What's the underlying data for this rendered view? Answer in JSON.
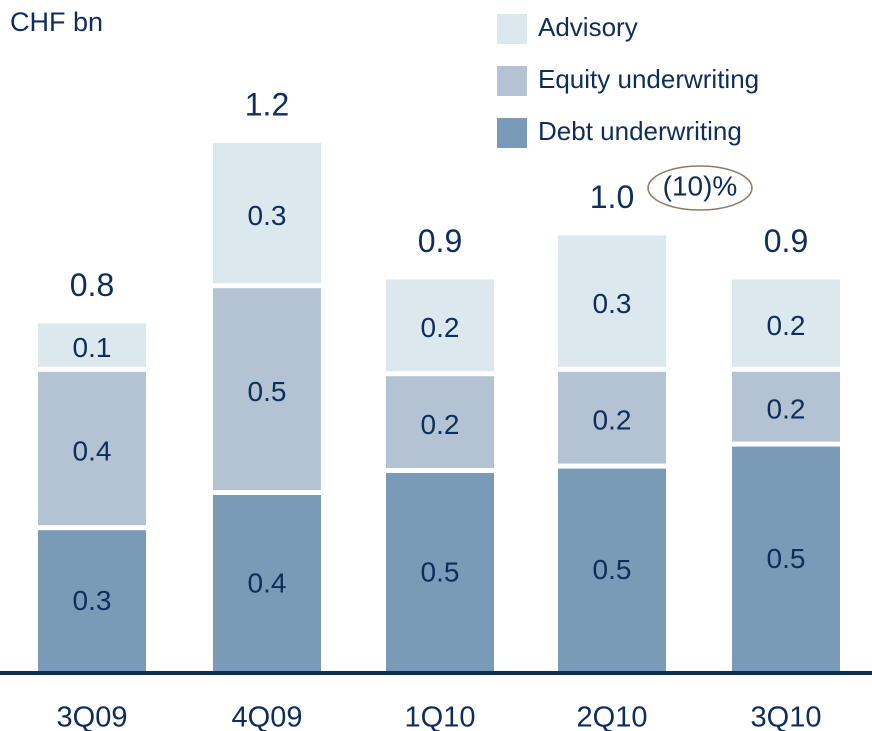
{
  "chart_data": {
    "type": "stacked_bar",
    "title": "CHF bn",
    "categories": [
      "3Q09",
      "4Q09",
      "1Q10",
      "2Q10",
      "3Q10"
    ],
    "series": [
      {
        "name": "Advisory",
        "color": "#dbe8ee",
        "values": [
          0.11,
          0.33,
          0.22,
          0.31,
          0.21
        ],
        "value_labels": [
          "0.1",
          "0.3",
          "0.2",
          "0.3",
          "0.2"
        ]
      },
      {
        "name": "Equity underwriting",
        "color": "#b3c3d3",
        "values": [
          0.36,
          0.47,
          0.22,
          0.22,
          0.17
        ],
        "value_labels": [
          "0.4",
          "0.5",
          "0.2",
          "0.2",
          "0.2"
        ]
      },
      {
        "name": "Debt underwriting",
        "color": "#7a9bb8",
        "values": [
          0.32,
          0.4,
          0.45,
          0.46,
          0.51
        ],
        "value_labels": [
          "0.3",
          "0.4",
          "0.5",
          "0.5",
          "0.5"
        ]
      }
    ],
    "totals": [
      0.79,
      1.2,
      0.89,
      0.99,
      0.89
    ],
    "total_labels": [
      "0.8",
      "1.2",
      "0.9",
      "1.0",
      "0.9"
    ],
    "annotation": "(10)%",
    "ylim": [
      0,
      1.2
    ]
  }
}
